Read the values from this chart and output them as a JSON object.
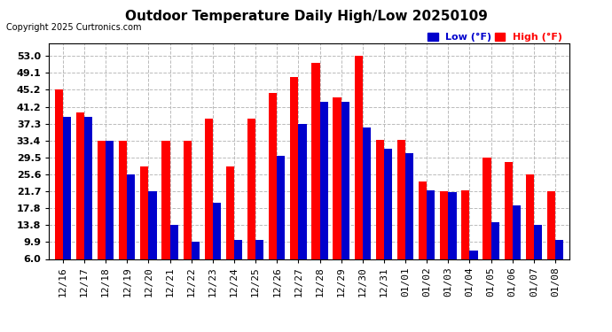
{
  "title": "Outdoor Temperature Daily High/Low 20250109",
  "copyright": "Copyright 2025 Curtronics.com",
  "dates": [
    "12/16",
    "12/17",
    "12/18",
    "12/19",
    "12/20",
    "12/21",
    "12/22",
    "12/23",
    "12/24",
    "12/25",
    "12/26",
    "12/27",
    "12/28",
    "12/29",
    "12/30",
    "12/31",
    "01/01",
    "01/02",
    "01/03",
    "01/04",
    "01/05",
    "01/06",
    "01/07",
    "01/08"
  ],
  "highs": [
    45.2,
    40.0,
    33.4,
    33.4,
    27.5,
    33.4,
    33.4,
    38.5,
    27.5,
    38.5,
    44.5,
    48.2,
    51.5,
    43.5,
    53.0,
    33.5,
    33.5,
    24.0,
    21.7,
    22.0,
    29.5,
    28.5,
    25.6,
    21.7
  ],
  "lows": [
    39.0,
    39.0,
    33.4,
    25.6,
    21.7,
    13.8,
    9.9,
    19.0,
    10.5,
    10.5,
    30.0,
    37.3,
    42.5,
    42.5,
    36.5,
    31.5,
    30.5,
    22.0,
    21.5,
    8.0,
    14.5,
    18.5,
    13.8,
    10.5
  ],
  "high_color": "#ff0000",
  "low_color": "#0000cc",
  "background_color": "#ffffff",
  "plot_bg_color": "#ffffff",
  "grid_color": "#bbbbbb",
  "ylim": [
    6.0,
    56.0
  ],
  "yticks": [
    6.0,
    9.9,
    13.8,
    17.8,
    21.7,
    25.6,
    29.5,
    33.4,
    37.3,
    41.2,
    45.2,
    49.1,
    53.0
  ],
  "title_fontsize": 11,
  "tick_fontsize": 8,
  "label_fontsize": 8,
  "bar_width": 0.38
}
